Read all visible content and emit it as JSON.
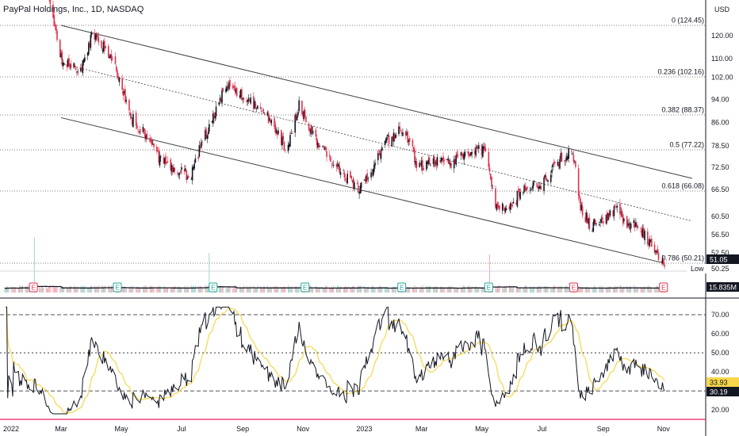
{
  "title": "PayPal Holdings, Inc., 1D, NASDAQ",
  "currency": "USD",
  "low_label": "Low",
  "chart_data": [
    {
      "type": "candlestick",
      "name": "price",
      "title": "PayPal Holdings, Inc., 1D, NASDAQ",
      "ylim": [
        47,
        132
      ],
      "y_ticks": [
        "120.00",
        "110.00",
        "102.00",
        "94.00",
        "86.00",
        "78.50",
        "72.50",
        "66.50",
        "60.50",
        "56.50",
        "52.50"
      ],
      "x_ticks": [
        "2022",
        "Mar",
        "May",
        "Jul",
        "Sep",
        "Nov",
        "2023",
        "Mar",
        "May",
        "Jul",
        "Sep",
        "Nov"
      ],
      "price_anchors": {
        "date": [
          "2022-01-03",
          "2022-01-20",
          "2022-02-10",
          "2022-03-01",
          "2022-03-20",
          "2022-04-01",
          "2022-04-20",
          "2022-05-10",
          "2022-05-25",
          "2022-06-10",
          "2022-06-25",
          "2022-07-10",
          "2022-07-25",
          "2022-08-05",
          "2022-08-15",
          "2022-08-25",
          "2022-09-15",
          "2022-10-01",
          "2022-10-15",
          "2022-10-28",
          "2022-11-10",
          "2022-11-28",
          "2022-12-15",
          "2022-12-28",
          "2023-01-10",
          "2023-01-25",
          "2023-02-10",
          "2023-02-25",
          "2023-03-15",
          "2023-04-01",
          "2023-04-20",
          "2023-05-05",
          "2023-05-15",
          "2023-05-30",
          "2023-06-15",
          "2023-07-01",
          "2023-07-20",
          "2023-08-01",
          "2023-08-08",
          "2023-08-20",
          "2023-09-01",
          "2023-09-15",
          "2023-09-25",
          "2023-10-05",
          "2023-10-20",
          "2023-11-01"
        ],
        "close": [
          182,
          170,
          152,
          110,
          104,
          120,
          112,
          88,
          82,
          74,
          72,
          70,
          82,
          90,
          100,
          97,
          91,
          86,
          77,
          92,
          83,
          74,
          70,
          67,
          72,
          80,
          84,
          73,
          74,
          74,
          77,
          77,
          62,
          63,
          67,
          68,
          75,
          77,
          63,
          58,
          60,
          62,
          58,
          59,
          54,
          50.2
        ]
      },
      "fib_levels": [
        {
          "label": "0 (124.45)",
          "value": 124.45
        },
        {
          "label": "0.236 (102.16)",
          "value": 102.16
        },
        {
          "label": "0.382 (88.37)",
          "value": 88.37
        },
        {
          "label": "0.5 (77.22)",
          "value": 77.22
        },
        {
          "label": "0.618 (66.08)",
          "value": 66.08
        },
        {
          "label": "0.786 (50.21)",
          "value": 50.21
        }
      ],
      "last_price": "51.05",
      "low_value": "50.25"
    },
    {
      "type": "bar",
      "name": "volume",
      "last_volume": "15.835M"
    },
    {
      "type": "line",
      "name": "rsi",
      "ylim": [
        15,
        80
      ],
      "y_ticks": [
        "70.00",
        "60.00",
        "50.00",
        "40.00",
        "20.00"
      ],
      "levels": [
        70,
        50,
        30
      ],
      "rsi_value": "30.19",
      "ma_value": "33.93",
      "colors": {
        "rsi": "#131722",
        "ma": "#f7d64a"
      }
    }
  ],
  "colors": {
    "up": "#131722",
    "down": "#e0314b",
    "channel": "#3c3f48",
    "grid": "#555555",
    "earnings_badge_down": "#e0314b",
    "earnings_badge_up": "#26a69a",
    "last_badge": "#131722",
    "axis_line": "#e91e63"
  },
  "earnings": [
    {
      "date": "2022-02-01",
      "label": "E",
      "result": "down"
    },
    {
      "date": "2022-04-27",
      "label": "E",
      "result": "up"
    },
    {
      "date": "2022-08-02",
      "label": "E",
      "result": "up"
    },
    {
      "date": "2022-11-03",
      "label": "E",
      "result": "up"
    },
    {
      "date": "2023-02-09",
      "label": "E",
      "result": "up"
    },
    {
      "date": "2023-05-08",
      "label": "E",
      "result": "up"
    },
    {
      "date": "2023-08-02",
      "label": "E",
      "result": "down"
    },
    {
      "date": "2023-11-01",
      "label": "E",
      "result": "down"
    }
  ]
}
